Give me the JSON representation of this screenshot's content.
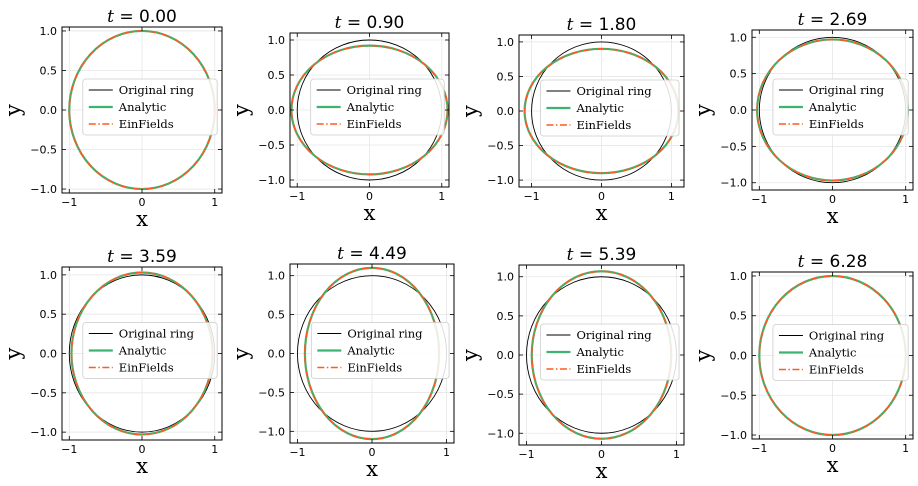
{
  "legend": {
    "original": "Original ring",
    "analytic": "Analytic",
    "einfields": "EinFields"
  },
  "colors": {
    "original": "#000000",
    "analytic": "#3cb371",
    "einfields": "#ff5a1f",
    "grid": "#e6e6e6"
  },
  "chart_data": [
    {
      "type": "line",
      "title": "t = 0.00",
      "t": "0.00",
      "xlabel": "x",
      "ylabel": "y",
      "xlim": [
        -1.1,
        1.1
      ],
      "ylim": [
        -1.05,
        1.05
      ],
      "xticks": [
        -1,
        0,
        1
      ],
      "yticks": [
        -1.0,
        -0.5,
        0.0,
        0.5,
        1.0
      ],
      "grid": true,
      "legend_position": "center-right",
      "series": [
        {
          "name": "Original ring",
          "shape": "circle",
          "rx": 1.0,
          "ry": 1.0
        },
        {
          "name": "Analytic",
          "shape": "ellipse",
          "rx": 1.0,
          "ry": 1.0
        },
        {
          "name": "EinFields",
          "shape": "ellipse",
          "rx": 1.0,
          "ry": 1.0
        }
      ]
    },
    {
      "type": "line",
      "title": "t = 0.90",
      "t": "0.90",
      "xlabel": "x",
      "ylabel": "y",
      "xlim": [
        -1.1,
        1.1
      ],
      "ylim": [
        -1.1,
        1.1
      ],
      "xticks": [
        -1,
        0,
        1
      ],
      "yticks": [
        -1.0,
        -0.5,
        0.0,
        0.5,
        1.0
      ],
      "grid": true,
      "legend_position": "center-right",
      "series": [
        {
          "name": "Original ring",
          "shape": "circle",
          "rx": 1.0,
          "ry": 1.0
        },
        {
          "name": "Analytic",
          "shape": "ellipse",
          "rx": 1.08,
          "ry": 0.92
        },
        {
          "name": "EinFields",
          "shape": "ellipse",
          "rx": 1.08,
          "ry": 0.92
        }
      ]
    },
    {
      "type": "line",
      "title": "t = 1.80",
      "t": "1.80",
      "xlabel": "x",
      "ylabel": "y",
      "xlim": [
        -1.18,
        1.18
      ],
      "ylim": [
        -1.1,
        1.1
      ],
      "xticks": [
        -1,
        0,
        1
      ],
      "yticks": [
        -1.0,
        -0.5,
        0.0,
        0.5,
        1.0
      ],
      "grid": true,
      "legend_position": "center-right",
      "series": [
        {
          "name": "Original ring",
          "shape": "circle",
          "rx": 1.0,
          "ry": 1.0
        },
        {
          "name": "Analytic",
          "shape": "ellipse",
          "rx": 1.1,
          "ry": 0.9
        },
        {
          "name": "EinFields",
          "shape": "ellipse",
          "rx": 1.1,
          "ry": 0.9
        }
      ]
    },
    {
      "type": "line",
      "title": "t = 2.69",
      "t": "2.69",
      "xlabel": "x",
      "ylabel": "y",
      "xlim": [
        -1.1,
        1.1
      ],
      "ylim": [
        -1.1,
        1.1
      ],
      "xticks": [
        -1,
        0,
        1
      ],
      "yticks": [
        -1.0,
        -0.5,
        0.0,
        0.5,
        1.0
      ],
      "grid": true,
      "legend_position": "center-right",
      "series": [
        {
          "name": "Original ring",
          "shape": "circle",
          "rx": 1.0,
          "ry": 1.0
        },
        {
          "name": "Analytic",
          "shape": "ellipse",
          "rx": 1.03,
          "ry": 0.97
        },
        {
          "name": "EinFields",
          "shape": "ellipse",
          "rx": 1.03,
          "ry": 0.97
        }
      ]
    },
    {
      "type": "line",
      "title": "t = 3.59",
      "t": "3.59",
      "xlabel": "x",
      "ylabel": "y",
      "xlim": [
        -1.1,
        1.1
      ],
      "ylim": [
        -1.1,
        1.1
      ],
      "xticks": [
        -1,
        0,
        1
      ],
      "yticks": [
        -1.0,
        -0.5,
        0.0,
        0.5,
        1.0
      ],
      "grid": true,
      "legend_position": "center-right",
      "series": [
        {
          "name": "Original ring",
          "shape": "circle",
          "rx": 1.0,
          "ry": 1.0
        },
        {
          "name": "Analytic",
          "shape": "ellipse",
          "rx": 0.97,
          "ry": 1.03
        },
        {
          "name": "EinFields",
          "shape": "ellipse",
          "rx": 0.97,
          "ry": 1.03
        }
      ]
    },
    {
      "type": "line",
      "title": "t = 4.49",
      "t": "4.49",
      "xlabel": "x",
      "ylabel": "y",
      "xlim": [
        -1.1,
        1.1
      ],
      "ylim": [
        -1.15,
        1.15
      ],
      "xticks": [
        -1,
        0,
        1
      ],
      "yticks": [
        -1.0,
        -0.5,
        0.0,
        0.5,
        1.0
      ],
      "grid": true,
      "legend_position": "center-right",
      "series": [
        {
          "name": "Original ring",
          "shape": "circle",
          "rx": 1.0,
          "ry": 1.0
        },
        {
          "name": "Analytic",
          "shape": "ellipse",
          "rx": 0.9,
          "ry": 1.1
        },
        {
          "name": "EinFields",
          "shape": "ellipse",
          "rx": 0.9,
          "ry": 1.1
        }
      ]
    },
    {
      "type": "line",
      "title": "t = 5.39",
      "t": "5.39",
      "xlabel": "x",
      "ylabel": "y",
      "xlim": [
        -1.1,
        1.1
      ],
      "ylim": [
        -1.15,
        1.15
      ],
      "xticks": [
        -1,
        0,
        1
      ],
      "yticks": [
        -1.0,
        -0.5,
        0.0,
        0.5,
        1.0
      ],
      "grid": true,
      "legend_position": "center-right",
      "series": [
        {
          "name": "Original ring",
          "shape": "circle",
          "rx": 1.0,
          "ry": 1.0
        },
        {
          "name": "Analytic",
          "shape": "ellipse",
          "rx": 0.93,
          "ry": 1.07
        },
        {
          "name": "EinFields",
          "shape": "ellipse",
          "rx": 0.93,
          "ry": 1.07
        }
      ]
    },
    {
      "type": "line",
      "title": "t = 6.28",
      "t": "6.28",
      "xlabel": "x",
      "ylabel": "y",
      "xlim": [
        -1.1,
        1.1
      ],
      "ylim": [
        -1.05,
        1.05
      ],
      "xticks": [
        -1,
        0,
        1
      ],
      "yticks": [
        -1.0,
        -0.5,
        0.0,
        0.5,
        1.0
      ],
      "grid": true,
      "legend_position": "center-right",
      "series": [
        {
          "name": "Original ring",
          "shape": "circle",
          "rx": 1.0,
          "ry": 1.0
        },
        {
          "name": "Analytic",
          "shape": "ellipse",
          "rx": 1.0,
          "ry": 1.0
        },
        {
          "name": "EinFields",
          "shape": "ellipse",
          "rx": 1.0,
          "ry": 1.0
        }
      ]
    }
  ]
}
